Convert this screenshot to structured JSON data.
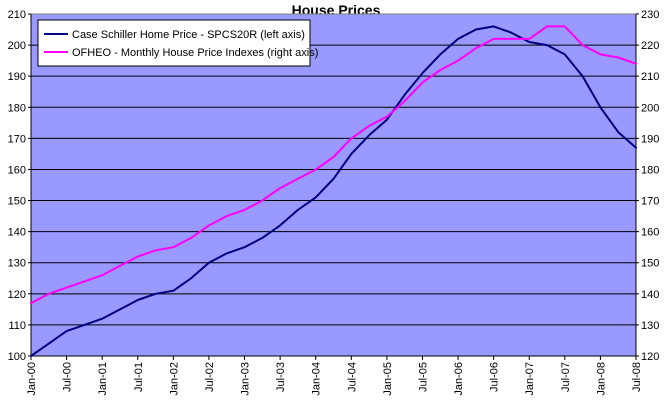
{
  "chart_data": {
    "type": "line",
    "title": "House Prices",
    "xlabel": "",
    "ylabel": "",
    "ylim_left": [
      100,
      210
    ],
    "ylim_right": [
      120,
      230
    ],
    "y_ticks_left": [
      100,
      110,
      120,
      130,
      140,
      150,
      160,
      170,
      180,
      190,
      200,
      210
    ],
    "y_ticks_right": [
      120,
      130,
      140,
      150,
      160,
      170,
      180,
      190,
      200,
      210,
      220,
      230
    ],
    "x_tick_labels": [
      "Jan-00",
      "Jul-00",
      "Jan-01",
      "Jul-01",
      "Jan-02",
      "Jul-02",
      "Jan-03",
      "Jul-03",
      "Jan-04",
      "Jul-04",
      "Jan-05",
      "Jul-05",
      "Jan-06",
      "Jul-06",
      "Jan-07",
      "Jul-07",
      "Jan-08",
      "Jul-08"
    ],
    "grid": true,
    "legend_position": "top-left",
    "plot_background": "#9999ff",
    "series": [
      {
        "name": "Case Schiller Home Price - SPCS20R (left axis)",
        "axis": "left",
        "color": "#000080",
        "points": [
          [
            "Jan-00",
            100
          ],
          [
            "Apr-00",
            104
          ],
          [
            "Jul-00",
            108
          ],
          [
            "Oct-00",
            110
          ],
          [
            "Jan-01",
            112
          ],
          [
            "Apr-01",
            115
          ],
          [
            "Jul-01",
            118
          ],
          [
            "Oct-01",
            120
          ],
          [
            "Jan-02",
            121
          ],
          [
            "Apr-02",
            125
          ],
          [
            "Jul-02",
            130
          ],
          [
            "Oct-02",
            133
          ],
          [
            "Jan-03",
            135
          ],
          [
            "Apr-03",
            138
          ],
          [
            "Jul-03",
            142
          ],
          [
            "Oct-03",
            147
          ],
          [
            "Jan-04",
            151
          ],
          [
            "Apr-04",
            157
          ],
          [
            "Jul-04",
            165
          ],
          [
            "Oct-04",
            171
          ],
          [
            "Jan-05",
            176
          ],
          [
            "Apr-05",
            184
          ],
          [
            "Jul-05",
            191
          ],
          [
            "Oct-05",
            197
          ],
          [
            "Jan-06",
            202
          ],
          [
            "Apr-06",
            205
          ],
          [
            "Jul-06",
            206
          ],
          [
            "Oct-06",
            204
          ],
          [
            "Jan-07",
            201
          ],
          [
            "Apr-07",
            200
          ],
          [
            "Jul-07",
            197
          ],
          [
            "Oct-07",
            190
          ],
          [
            "Jan-08",
            180
          ],
          [
            "Apr-08",
            172
          ],
          [
            "Jul-08",
            167
          ]
        ]
      },
      {
        "name": "OFHEO - Monthly House Price Indexes (right axis)",
        "axis": "right",
        "color": "#ff00ff",
        "points": [
          [
            "Jan-00",
            137
          ],
          [
            "Apr-00",
            140
          ],
          [
            "Jul-00",
            142
          ],
          [
            "Oct-00",
            144
          ],
          [
            "Jan-01",
            146
          ],
          [
            "Apr-01",
            149
          ],
          [
            "Jul-01",
            152
          ],
          [
            "Oct-01",
            154
          ],
          [
            "Jan-02",
            155
          ],
          [
            "Apr-02",
            158
          ],
          [
            "Jul-02",
            162
          ],
          [
            "Oct-02",
            165
          ],
          [
            "Jan-03",
            167
          ],
          [
            "Apr-03",
            170
          ],
          [
            "Jul-03",
            174
          ],
          [
            "Oct-03",
            177
          ],
          [
            "Jan-04",
            180
          ],
          [
            "Apr-04",
            184
          ],
          [
            "Jul-04",
            190
          ],
          [
            "Oct-04",
            194
          ],
          [
            "Jan-05",
            197
          ],
          [
            "Apr-05",
            202
          ],
          [
            "Jul-05",
            208
          ],
          [
            "Oct-05",
            212
          ],
          [
            "Jan-06",
            215
          ],
          [
            "Apr-06",
            219
          ],
          [
            "Jul-06",
            222
          ],
          [
            "Oct-06",
            222
          ],
          [
            "Jan-07",
            222
          ],
          [
            "Apr-07",
            226
          ],
          [
            "Jul-07",
            226
          ],
          [
            "Oct-07",
            220
          ],
          [
            "Jan-08",
            217
          ],
          [
            "Apr-08",
            216
          ],
          [
            "Jul-08",
            214
          ]
        ]
      }
    ]
  }
}
